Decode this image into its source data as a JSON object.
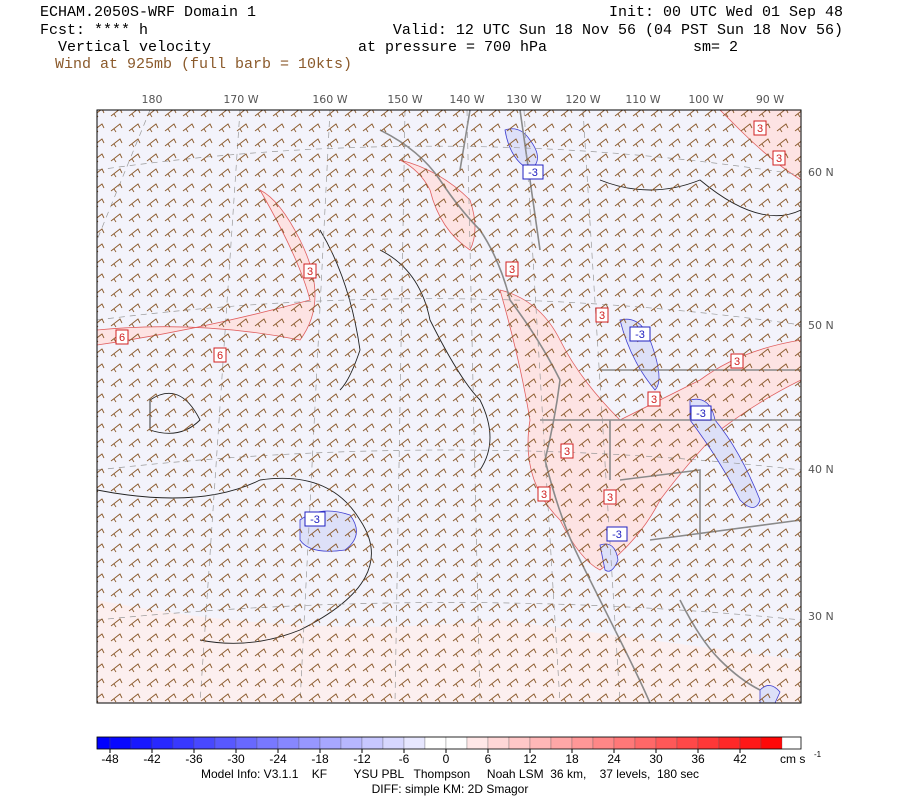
{
  "header": {
    "model": "ECHAM.2050S-WRF Domain 1",
    "forecast": "Fcst: **** h",
    "field": "Vertical velocity",
    "wind": "Wind at 925mb (full barb = 10kts)",
    "init": "Init: 00 UTC Wed 01 Sep 48",
    "valid": "Valid: 12 UTC Sun 18 Nov 56 (04 PST Sun 18 Nov 56)",
    "pressure": "at pressure =  700 hPa",
    "smoothing": "sm= 2"
  },
  "map": {
    "longitudes": [
      "180",
      "170 W",
      "160 W",
      "150 W",
      "140 W",
      "130 W",
      "120 W",
      "110 W",
      "100 W",
      "90 W"
    ],
    "latitudes": [
      "60 N",
      "50 N",
      "40 N",
      "30 N"
    ],
    "contour_labels": [
      "3",
      "3",
      "-3",
      "3",
      "3",
      "3",
      "-3",
      "6",
      "6",
      "3",
      "3",
      "-3",
      "3",
      "3",
      "3",
      "-3",
      "-3"
    ]
  },
  "colorbar": {
    "ticks": [
      -48,
      -42,
      -36,
      -30,
      -24,
      -18,
      -12,
      -6,
      0,
      6,
      12,
      18,
      24,
      30,
      36,
      42
    ],
    "unit": "cm s",
    "unit_exponent": "-1"
  },
  "footer": {
    "model_info": "Model Info: V3.1.1    KF        YSU PBL   Thompson     Noah LSM  36 km,    37 levels,  180 sec",
    "diffusion": "DIFF: simple KM: 2D Smagor"
  }
}
